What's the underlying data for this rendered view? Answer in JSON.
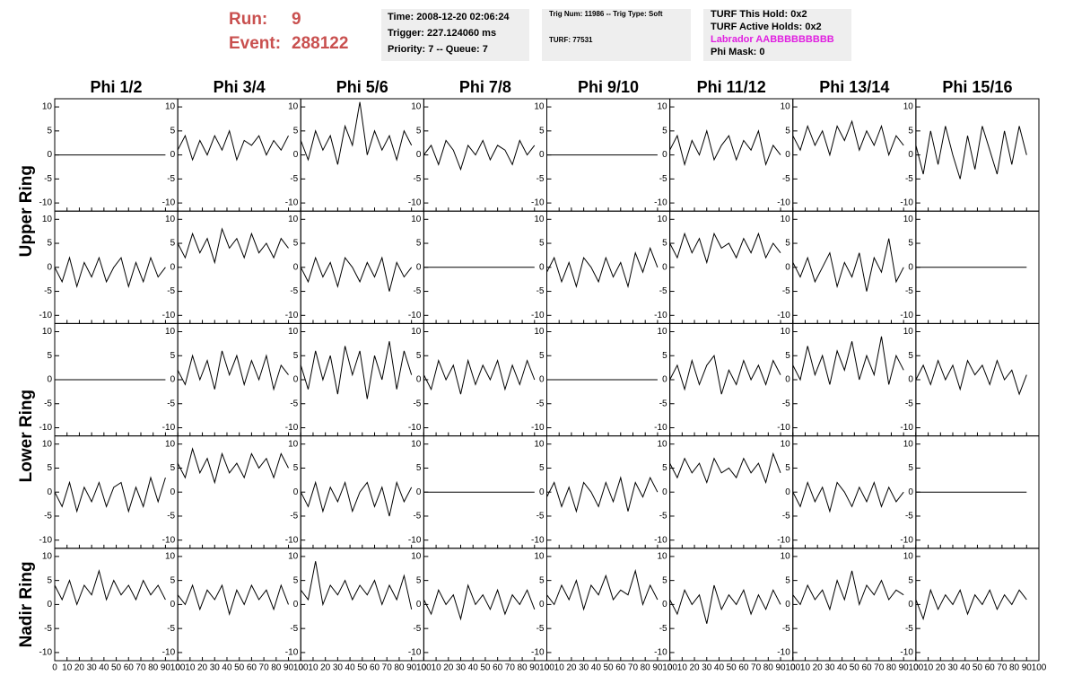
{
  "header": {
    "run_label": "Run:",
    "run": "9",
    "event_label": "Event:",
    "event": "288122",
    "info": [
      [
        "Time: 2008-12-20 02:06:24",
        "Trigger: 227.124060 ms",
        "Priority: 7 -- Queue: 7"
      ],
      [
        "Trig Num: 11986 -- Trig Type: Soft",
        "TURF: 77531"
      ],
      [
        "TURF This Hold: 0x2",
        "TURF Active Holds: 0x2",
        "Labrador AABBBBBBBBB",
        "Phi Mask: 0"
      ]
    ]
  },
  "chart_data": {
    "type": "line",
    "columns": [
      "Phi 1/2",
      "Phi 3/4",
      "Phi 5/6",
      "Phi 7/8",
      "Phi 9/10",
      "Phi 11/12",
      "Phi 13/14",
      "Phi 15/16"
    ],
    "row_labels": [
      "Upper Ring",
      "Lower Ring",
      "Nadir Ring"
    ],
    "xlim": [
      0,
      100
    ],
    "xticks": [
      0,
      10,
      20,
      30,
      40,
      50,
      60,
      70,
      80,
      90,
      100
    ],
    "ylim": [
      -11.7,
      11.7
    ],
    "yticks": [
      -10,
      -5,
      0,
      5,
      10
    ],
    "x": [
      0,
      6,
      12,
      18,
      24,
      30,
      36,
      42,
      48,
      54,
      60,
      66,
      72,
      78,
      84,
      90
    ],
    "color": "#000000",
    "panels": [
      [
        [
          0,
          0,
          0,
          0,
          0,
          0,
          0,
          0,
          0,
          0,
          0,
          0,
          0,
          0,
          0,
          0
        ],
        [
          1,
          4,
          -1,
          3,
          0,
          4,
          1,
          5,
          -1,
          3,
          2,
          4,
          0,
          3,
          1,
          4
        ],
        [
          3,
          -1,
          5,
          1,
          4,
          -2,
          6,
          2,
          11,
          0,
          5,
          1,
          4,
          -1,
          5,
          2
        ],
        [
          0,
          2,
          -2,
          3,
          1,
          -3,
          2,
          0,
          3,
          -1,
          2,
          1,
          -2,
          3,
          0,
          2
        ],
        [
          0,
          0,
          0,
          0,
          0,
          0,
          0,
          0,
          0,
          0,
          0,
          0,
          0,
          0,
          0,
          0
        ],
        [
          1,
          4,
          -2,
          3,
          0,
          5,
          -1,
          2,
          4,
          -1,
          3,
          1,
          5,
          -2,
          2,
          0
        ],
        [
          4,
          1,
          6,
          2,
          5,
          0,
          6,
          3,
          7,
          1,
          5,
          2,
          6,
          0,
          4,
          2
        ],
        [
          2,
          -4,
          5,
          -2,
          6,
          0,
          -5,
          4,
          -3,
          6,
          1,
          -4,
          5,
          -2,
          6,
          0
        ]
      ],
      [
        [
          0,
          -3,
          2,
          -4,
          1,
          -2,
          2,
          -3,
          0,
          2,
          -4,
          1,
          -3,
          2,
          -2,
          0
        ],
        [
          5,
          2,
          7,
          3,
          6,
          1,
          8,
          4,
          6,
          2,
          7,
          3,
          5,
          2,
          6,
          4
        ],
        [
          0,
          -3,
          2,
          -2,
          1,
          -4,
          2,
          0,
          -3,
          1,
          -2,
          2,
          -5,
          1,
          -2,
          0
        ],
        [
          0,
          0,
          0,
          0,
          0,
          0,
          0,
          0,
          0,
          0,
          0,
          0,
          0,
          0,
          0,
          0
        ],
        [
          -1,
          2,
          -3,
          1,
          -4,
          2,
          0,
          -3,
          2,
          -2,
          1,
          -4,
          3,
          -1,
          4,
          0
        ],
        [
          5,
          2,
          7,
          3,
          6,
          1,
          7,
          4,
          5,
          2,
          6,
          3,
          7,
          2,
          5,
          3
        ],
        [
          1,
          -2,
          2,
          -3,
          0,
          3,
          -4,
          1,
          -2,
          3,
          -5,
          2,
          -1,
          6,
          -3,
          0
        ],
        [
          0,
          0,
          0,
          0,
          0,
          0,
          0,
          0,
          0,
          0,
          0,
          0,
          0,
          0,
          0,
          0
        ]
      ],
      [
        [
          0,
          0,
          0,
          0,
          0,
          0,
          0,
          0,
          0,
          0,
          0,
          0,
          0,
          0,
          0,
          0
        ],
        [
          2,
          -1,
          5,
          0,
          4,
          -2,
          6,
          1,
          5,
          -1,
          4,
          0,
          5,
          -2,
          3,
          1
        ],
        [
          3,
          -2,
          6,
          0,
          5,
          -3,
          7,
          1,
          6,
          -4,
          5,
          0,
          8,
          -2,
          6,
          1
        ],
        [
          1,
          -2,
          4,
          0,
          3,
          -3,
          4,
          -1,
          3,
          0,
          4,
          -2,
          3,
          -1,
          4,
          0
        ],
        [
          0,
          0,
          0,
          0,
          0,
          0,
          0,
          0,
          0,
          0,
          0,
          0,
          0,
          0,
          0,
          0
        ],
        [
          0,
          3,
          -2,
          4,
          -1,
          3,
          5,
          -3,
          2,
          -1,
          4,
          0,
          3,
          -1,
          4,
          1
        ],
        [
          3,
          0,
          7,
          1,
          5,
          -1,
          6,
          2,
          8,
          0,
          5,
          1,
          9,
          -1,
          5,
          2
        ],
        [
          0,
          3,
          -1,
          4,
          0,
          3,
          -2,
          4,
          1,
          3,
          -1,
          4,
          0,
          2,
          -3,
          1
        ]
      ],
      [
        [
          0,
          -3,
          2,
          -4,
          1,
          -2,
          2,
          -3,
          1,
          2,
          -4,
          1,
          -3,
          3,
          -2,
          3
        ],
        [
          6,
          3,
          9,
          4,
          7,
          2,
          8,
          4,
          6,
          3,
          8,
          5,
          7,
          3,
          8,
          5
        ],
        [
          0,
          -3,
          2,
          -4,
          1,
          -2,
          2,
          -4,
          0,
          2,
          -3,
          1,
          -5,
          2,
          -2,
          1
        ],
        [
          0,
          0,
          0,
          0,
          0,
          0,
          0,
          0,
          0,
          0,
          0,
          0,
          0,
          0,
          0,
          0
        ],
        [
          -1,
          2,
          -3,
          1,
          -4,
          2,
          0,
          -3,
          2,
          -2,
          3,
          -4,
          2,
          -1,
          3,
          0
        ],
        [
          6,
          3,
          7,
          4,
          6,
          2,
          7,
          4,
          5,
          3,
          7,
          4,
          6,
          2,
          8,
          4
        ],
        [
          0,
          -3,
          2,
          -2,
          1,
          -4,
          2,
          0,
          -3,
          1,
          -2,
          2,
          -3,
          1,
          -2,
          0
        ],
        [
          0,
          0,
          0,
          0,
          0,
          0,
          0,
          0,
          0,
          0,
          0,
          0,
          0,
          0,
          0,
          0
        ]
      ],
      [
        [
          4,
          1,
          5,
          0,
          4,
          2,
          7,
          1,
          5,
          2,
          4,
          1,
          5,
          2,
          4,
          1
        ],
        [
          2,
          0,
          4,
          -1,
          3,
          1,
          4,
          -2,
          3,
          0,
          4,
          1,
          3,
          -1,
          4,
          0
        ],
        [
          3,
          1,
          9,
          0,
          4,
          2,
          5,
          1,
          4,
          2,
          5,
          0,
          4,
          1,
          6,
          -1
        ],
        [
          1,
          -2,
          3,
          0,
          2,
          -3,
          4,
          0,
          2,
          -1,
          3,
          -2,
          2,
          0,
          3,
          -1
        ],
        [
          2,
          0,
          4,
          1,
          5,
          -1,
          4,
          2,
          6,
          1,
          3,
          2,
          7,
          0,
          4,
          1
        ],
        [
          1,
          -2,
          3,
          0,
          2,
          -4,
          4,
          -1,
          2,
          0,
          3,
          -2,
          2,
          -1,
          3,
          0
        ],
        [
          2,
          0,
          4,
          1,
          3,
          -1,
          5,
          1,
          7,
          0,
          4,
          2,
          5,
          1,
          3,
          2
        ],
        [
          1,
          -3,
          3,
          -1,
          2,
          0,
          3,
          -2,
          2,
          0,
          3,
          -1,
          2,
          0,
          3,
          1
        ]
      ]
    ]
  }
}
